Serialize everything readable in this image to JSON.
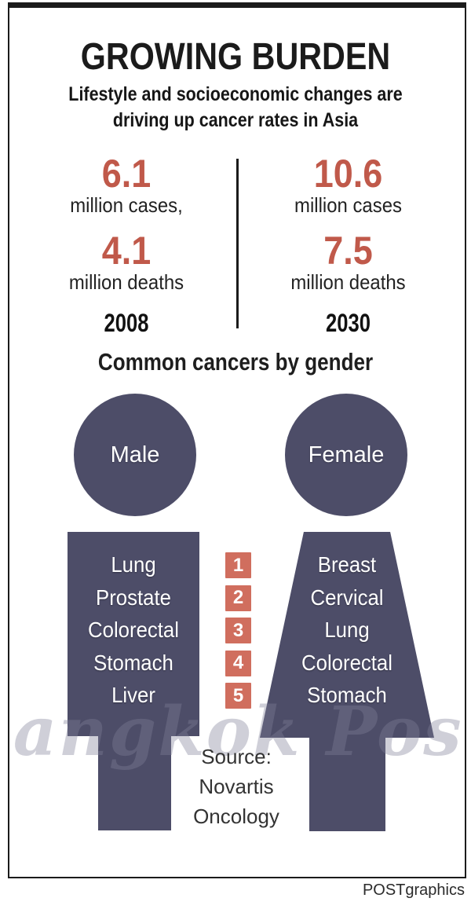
{
  "header": {
    "title": "GROWING BURDEN",
    "subtitle_line1": "Lifestyle and socioeconomic changes are",
    "subtitle_line2": "driving up cancer rates in Asia"
  },
  "stats": {
    "left": {
      "value1": "6.1",
      "label1": "million cases,",
      "value2": "4.1",
      "label2": "million deaths",
      "year": "2008"
    },
    "right": {
      "value1": "10.6",
      "label1": "million cases",
      "value2": "7.5",
      "label2": "million deaths",
      "year": "2030"
    }
  },
  "section": {
    "heading": "Common cancers by gender"
  },
  "figures": {
    "male": {
      "label": "Male",
      "cancers": [
        "Lung",
        "Prostate",
        "Colorectal",
        "Stomach",
        "Liver"
      ]
    },
    "female": {
      "label": "Female",
      "cancers": [
        "Breast",
        "Cervical",
        "Lung",
        "Colorectal",
        "Stomach"
      ]
    },
    "ranks": [
      "1",
      "2",
      "3",
      "4",
      "5"
    ]
  },
  "source": {
    "line1": "Source:",
    "line2": "Novartis",
    "line3": "Oncology"
  },
  "watermark": {
    "text": "Bangkok Post Ba"
  },
  "footer": {
    "credit": "POSTgraphics"
  },
  "colors": {
    "accent_red": "#c0594a",
    "rank_red": "#d06e5e",
    "figure_slate": "#4d4d68",
    "ink": "#1b1b1b"
  },
  "chart_data": {
    "type": "table",
    "title": "GROWING BURDEN",
    "subtitle": "Lifestyle and socioeconomic changes are driving up cancer rates in Asia",
    "categories": [
      "2008",
      "2030"
    ],
    "series": [
      {
        "name": "Cancer cases (millions)",
        "values": [
          6.1,
          10.6
        ]
      },
      {
        "name": "Cancer deaths (millions)",
        "values": [
          4.1,
          7.5
        ]
      }
    ],
    "rankings_common_cancers_by_gender": {
      "rank_order": [
        1,
        2,
        3,
        4,
        5
      ],
      "male": [
        "Lung",
        "Prostate",
        "Colorectal",
        "Stomach",
        "Liver"
      ],
      "female": [
        "Breast",
        "Cervical",
        "Lung",
        "Colorectal",
        "Stomach"
      ]
    },
    "source": "Source: Novartis Oncology",
    "credit": "POSTgraphics"
  }
}
